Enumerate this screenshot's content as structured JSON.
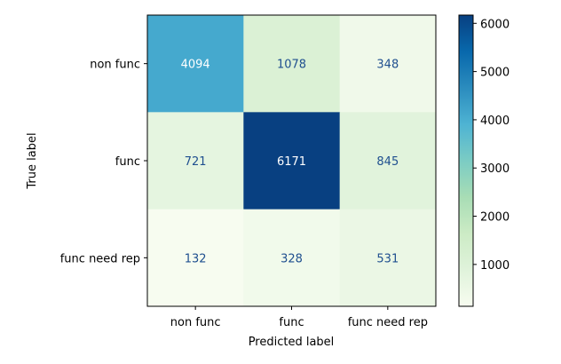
{
  "chart_data": {
    "type": "heatmap",
    "xlabel": "Predicted label",
    "ylabel": "True label",
    "x_categories": [
      "non func",
      "func",
      "func need rep"
    ],
    "y_categories": [
      "non func",
      "func",
      "func need rep"
    ],
    "values": [
      [
        4094,
        1078,
        348
      ],
      [
        721,
        6171,
        845
      ],
      [
        132,
        328,
        531
      ]
    ],
    "colormap": "GnBu",
    "colorbar": {
      "ticks": [
        1000,
        2000,
        3000,
        4000,
        5000,
        6000
      ],
      "range": [
        132,
        6171
      ]
    },
    "text_color_light_cells": "#1f4f8f",
    "text_color_dark_cells": "#ffffff"
  }
}
